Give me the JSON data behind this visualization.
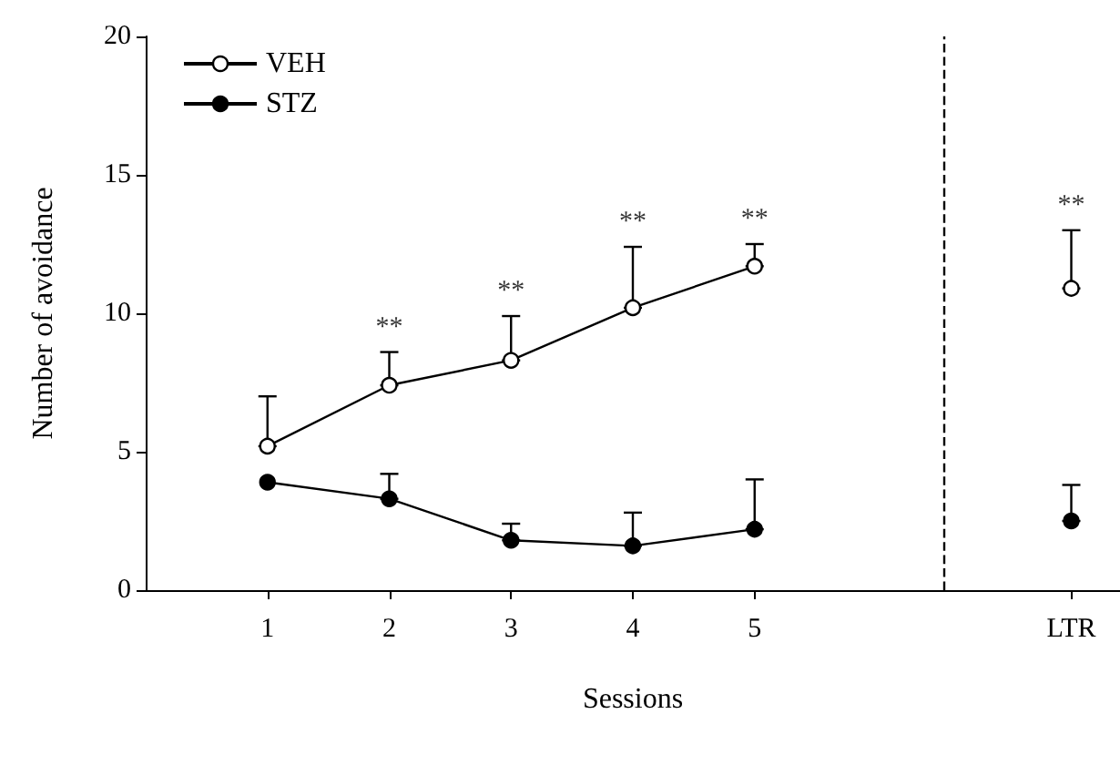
{
  "chart_data": {
    "type": "line",
    "xlabel": "Sessions",
    "ylabel": "Number of avoidance",
    "x": [
      1,
      2,
      3,
      4,
      5,
      6,
      7.6
    ],
    "xlim": [
      0,
      8
    ],
    "xticks": [
      1,
      2,
      3,
      4,
      5,
      {
        "value": 7.6,
        "label": "LTR"
      }
    ],
    "ylim": [
      0,
      20
    ],
    "yticks": [
      0,
      5,
      10,
      15,
      20
    ],
    "series": [
      {
        "name": "VEH",
        "color": "#ffffff",
        "values": [
          5.2,
          7.4,
          8.3,
          10.2,
          11.7,
          null,
          10.9
        ],
        "errors": [
          [
            5.2,
            7.0
          ],
          [
            7.4,
            8.6
          ],
          [
            8.3,
            9.9
          ],
          [
            10.2,
            12.4
          ],
          [
            11.7,
            12.5
          ],
          null,
          [
            10.9,
            13.0
          ]
        ]
      },
      {
        "name": "STZ",
        "color": "#000000",
        "values": [
          3.9,
          3.3,
          1.8,
          1.6,
          2.2,
          null,
          2.5
        ],
        "errors": [
          null,
          [
            3.3,
            4.2
          ],
          [
            1.8,
            2.4
          ],
          [
            1.6,
            2.8
          ],
          [
            2.2,
            4.0
          ],
          null,
          [
            2.5,
            3.8
          ]
        ]
      }
    ],
    "ref_lines": [
      {
        "axis": "x",
        "value": 6.55,
        "line_style": "dashed",
        "color": "#000000"
      }
    ],
    "annotations": [
      {
        "text": "**",
        "x": 2,
        "y": 7.4
      },
      {
        "text": "**",
        "x": 3,
        "y": 8.3
      },
      {
        "text": "**",
        "x": 4,
        "y": 10.2
      },
      {
        "text": "**",
        "x": 5,
        "y": 11.7
      },
      {
        "text": "**",
        "x": 7.6,
        "y": 10.9
      }
    ],
    "marker": "circle",
    "line_style": "solid",
    "grid": false,
    "legend": "top left"
  }
}
